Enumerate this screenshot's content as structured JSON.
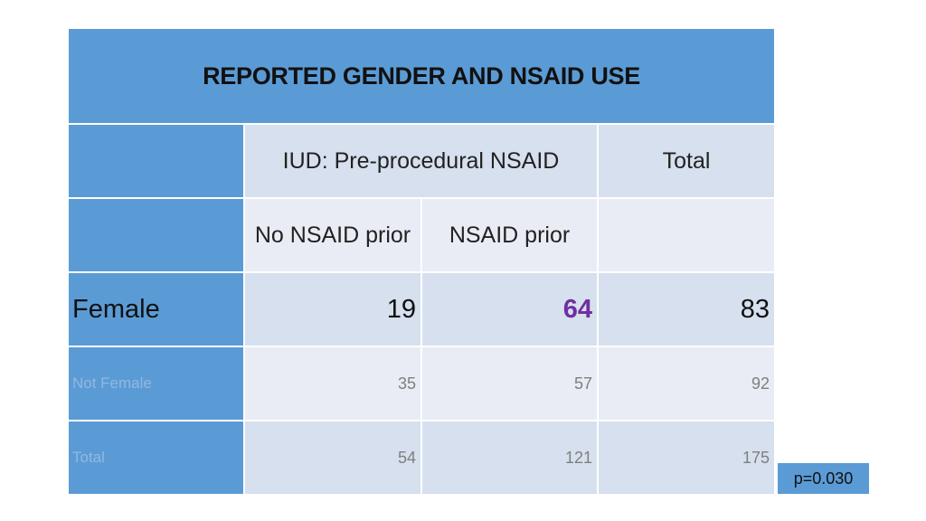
{
  "table": {
    "title": "REPORTED GENDER AND NSAID USE",
    "header_group": "IUD: Pre-procedural NSAID",
    "header_total": "Total",
    "subheaders": [
      "No NSAID prior",
      "NSAID prior"
    ],
    "rows": [
      {
        "label": "Female",
        "no_nsaid": "19",
        "nsaid": "64",
        "total": "83"
      },
      {
        "label": "Not Female",
        "no_nsaid": "35",
        "nsaid": "57",
        "total": "92"
      },
      {
        "label": "Total",
        "no_nsaid": "54",
        "nsaid": "121",
        "total": "175"
      }
    ]
  },
  "pvalue": "p=0.030",
  "colors": {
    "header_blue": "#5b9bd5",
    "cell_shade_dark": "#d6e0ee",
    "cell_shade_light": "#e9ecf5",
    "accent_purple": "#7030a0"
  }
}
